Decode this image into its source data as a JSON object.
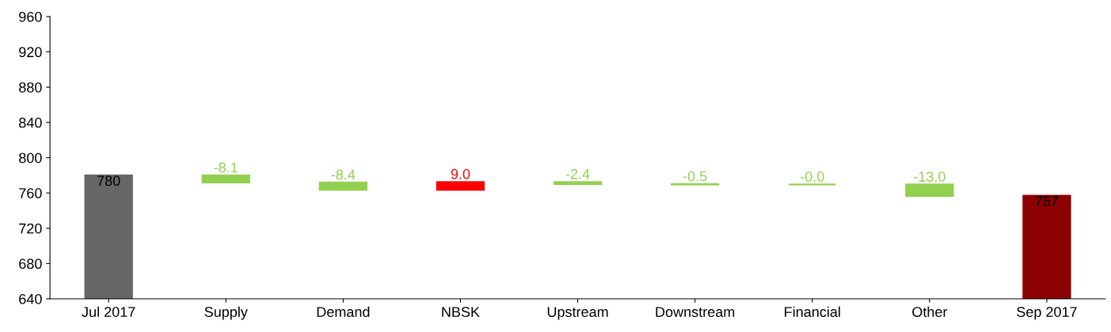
{
  "chart_data": {
    "type": "bar",
    "categories": [
      "Jul 2017",
      "Supply",
      "Demand",
      "NBSK",
      "Upstream",
      "Downstream",
      "Financial",
      "Other",
      "Sep 2017"
    ],
    "values": [
      780,
      -8.1,
      -8.4,
      9.0,
      -2.4,
      -0.5,
      -0.0,
      -13.0,
      757
    ],
    "base": [
      null,
      780,
      771.9,
      763.5,
      772.5,
      770.1,
      769.6,
      769.6,
      null
    ],
    "colors": [
      "#666666",
      "#92d050",
      "#92d050",
      "#ff0000",
      "#92d050",
      "#92d050",
      "#92d050",
      "#92d050",
      "#8b0000"
    ],
    "value_labels": [
      "780",
      "-8.1",
      "-8.4",
      "9.0",
      "-2.4",
      "-0.5",
      "-0.0",
      "-13.0",
      "757"
    ],
    "ylim": [
      640,
      960
    ],
    "yticks": [
      640,
      680,
      720,
      760,
      800,
      840,
      880,
      920,
      960
    ],
    "grid": false,
    "legend": false
  }
}
